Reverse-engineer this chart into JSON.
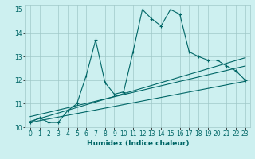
{
  "title": "",
  "xlabel": "Humidex (Indice chaleur)",
  "ylabel": "",
  "bg_color": "#cdf0f0",
  "grid_color": "#a0c8c8",
  "line_color": "#006666",
  "xlim": [
    -0.5,
    23.5
  ],
  "ylim": [
    10,
    15.2
  ],
  "xticks": [
    0,
    1,
    2,
    3,
    4,
    5,
    6,
    7,
    8,
    9,
    10,
    11,
    12,
    13,
    14,
    15,
    16,
    17,
    18,
    19,
    20,
    21,
    22,
    23
  ],
  "yticks": [
    10,
    11,
    12,
    13,
    14,
    15
  ],
  "line1_x": [
    0,
    1,
    2,
    3,
    4,
    5,
    6,
    7,
    8,
    9,
    10,
    11,
    12,
    13,
    14,
    15,
    16,
    17,
    18,
    19,
    20,
    21,
    22,
    23
  ],
  "line1_y": [
    10.2,
    10.4,
    10.2,
    10.2,
    10.7,
    11.0,
    12.2,
    13.7,
    11.9,
    11.4,
    11.5,
    13.2,
    15.0,
    14.6,
    14.3,
    15.0,
    14.8,
    13.2,
    13.0,
    12.85,
    12.85,
    12.6,
    12.4,
    12.0
  ],
  "line2_x": [
    0,
    23
  ],
  "line2_y": [
    10.25,
    12.95
  ],
  "line3_x": [
    0,
    23
  ],
  "line3_y": [
    10.45,
    12.6
  ],
  "line4_x": [
    0,
    23
  ],
  "line4_y": [
    10.2,
    11.95
  ]
}
